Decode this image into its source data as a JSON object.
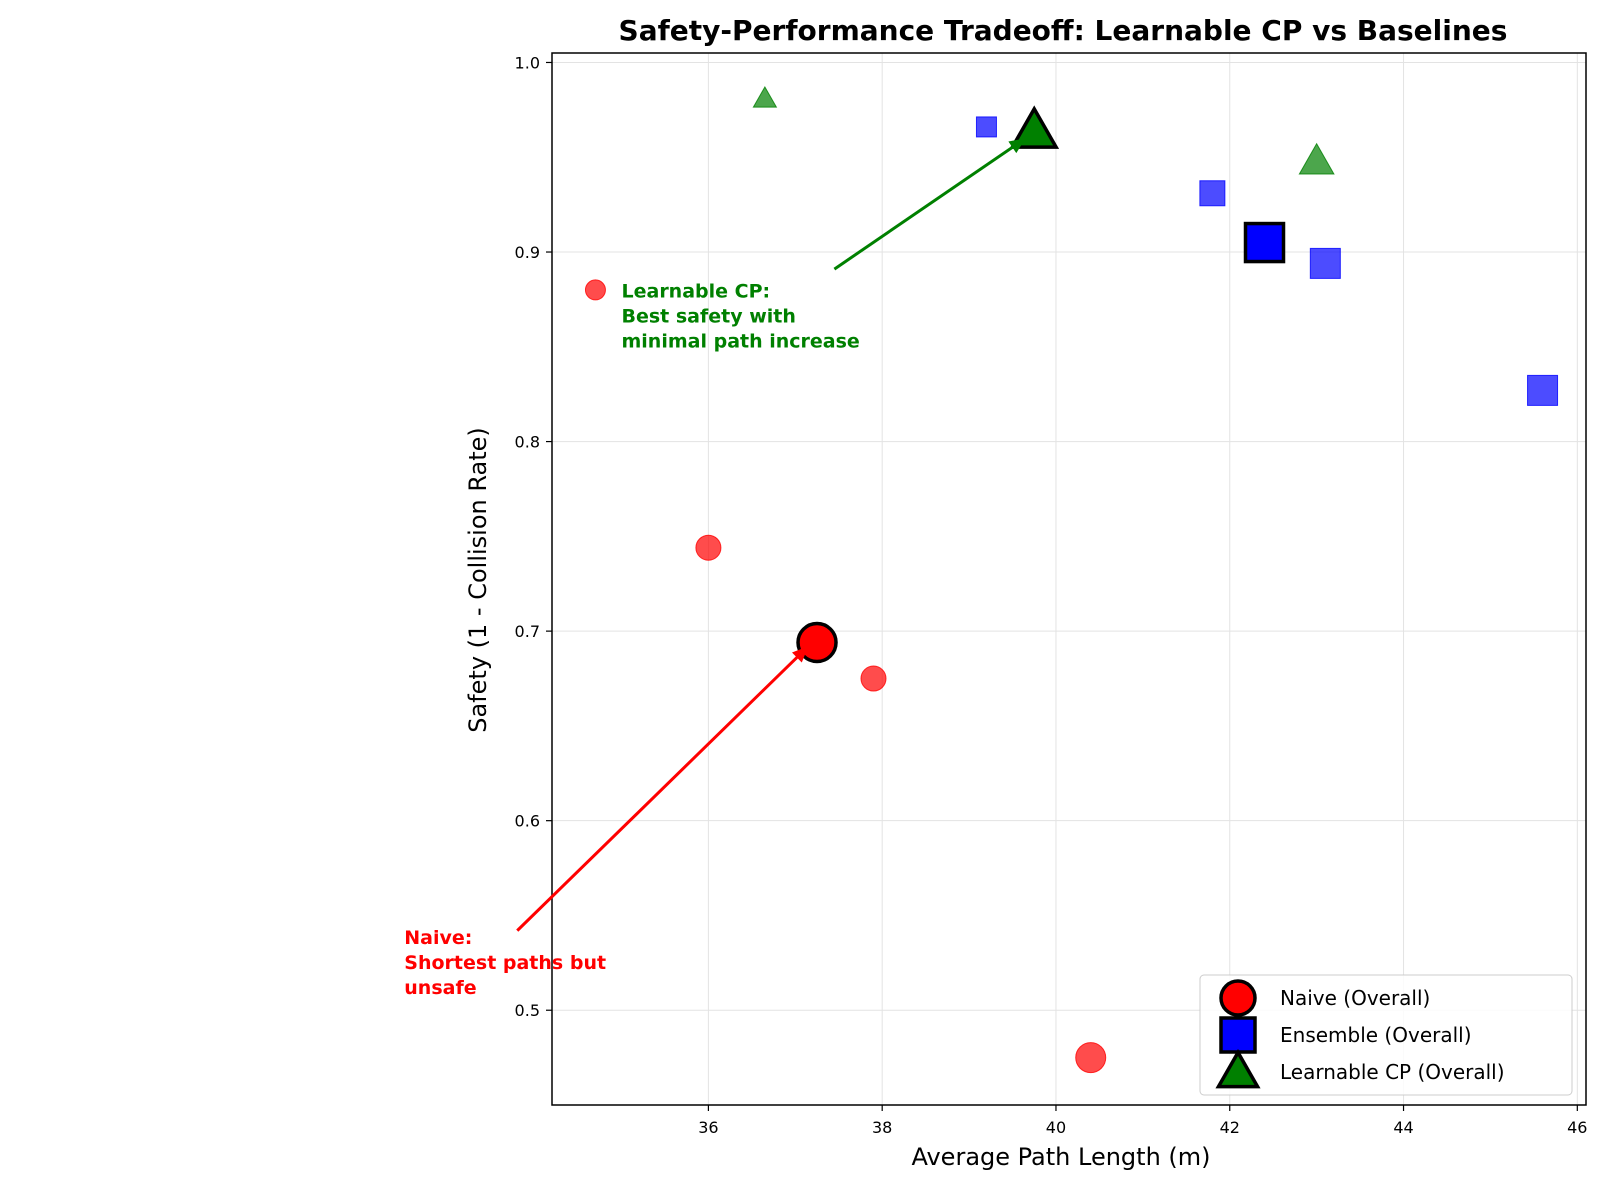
{
  "chart_data": {
    "type": "scatter",
    "title": "Safety-Performance Tradeoff: Learnable CP vs Baselines",
    "xlabel": "Average Path Length (m)",
    "ylabel": "Safety (1 - Collision Rate)",
    "xlim": [
      34.2,
      46.1
    ],
    "ylim": [
      0.45,
      1.005
    ],
    "xticks": [
      36,
      38,
      40,
      42,
      44,
      46
    ],
    "yticks": [
      0.5,
      0.6,
      0.7,
      0.8,
      0.9,
      1.0
    ],
    "xtick_labels": [
      "36",
      "38",
      "40",
      "42",
      "44",
      "46"
    ],
    "ytick_labels": [
      "0.5",
      "0.6",
      "0.7",
      "0.8",
      "0.9",
      "1.0"
    ],
    "grid": true,
    "legend_position": "bottom-right",
    "series": [
      {
        "marker": "circle",
        "color": "#ff0000",
        "points": [
          {
            "x": 34.7,
            "y": 0.88,
            "size": "small"
          },
          {
            "x": 36.0,
            "y": 0.744,
            "size": "medium"
          },
          {
            "x": 37.9,
            "y": 0.675,
            "size": "medium"
          },
          {
            "x": 40.4,
            "y": 0.475,
            "size": "large"
          }
        ]
      },
      {
        "marker": "square",
        "color": "#0000ff",
        "points": [
          {
            "x": 39.2,
            "y": 0.966,
            "size": "small"
          },
          {
            "x": 41.8,
            "y": 0.931,
            "size": "medium"
          },
          {
            "x": 43.1,
            "y": 0.894,
            "size": "large"
          },
          {
            "x": 45.6,
            "y": 0.827,
            "size": "large"
          }
        ]
      },
      {
        "marker": "triangle",
        "color": "#008000",
        "points": [
          {
            "x": 36.65,
            "y": 0.981,
            "size": "small"
          },
          {
            "x": 43.0,
            "y": 0.948,
            "size": "large"
          }
        ]
      }
    ],
    "overall": [
      {
        "name": "Naive (Overall)",
        "marker": "circle",
        "color": "#ff0000",
        "x": 37.25,
        "y": 0.694
      },
      {
        "name": "Ensemble (Overall)",
        "marker": "square",
        "color": "#0000ff",
        "x": 42.4,
        "y": 0.905
      },
      {
        "name": "Learnable CP (Overall)",
        "marker": "triangle",
        "color": "#008000",
        "x": 39.75,
        "y": 0.964
      }
    ],
    "annotations": [
      {
        "lines": [
          "Naive:",
          "Shortest paths but",
          "unsafe"
        ],
        "color": "#ff0000",
        "text_x": 32.5,
        "text_y": 0.535,
        "arrow_from": [
          33.8,
          0.542
        ],
        "arrow_to": [
          37.15,
          0.692
        ]
      },
      {
        "lines": [
          "Learnable CP:",
          "Best safety with",
          "minimal path increase"
        ],
        "color": "#008000",
        "text_x": 35.0,
        "text_y": 0.876,
        "arrow_from": [
          37.45,
          0.891
        ],
        "arrow_to": [
          39.65,
          0.96
        ]
      }
    ]
  }
}
